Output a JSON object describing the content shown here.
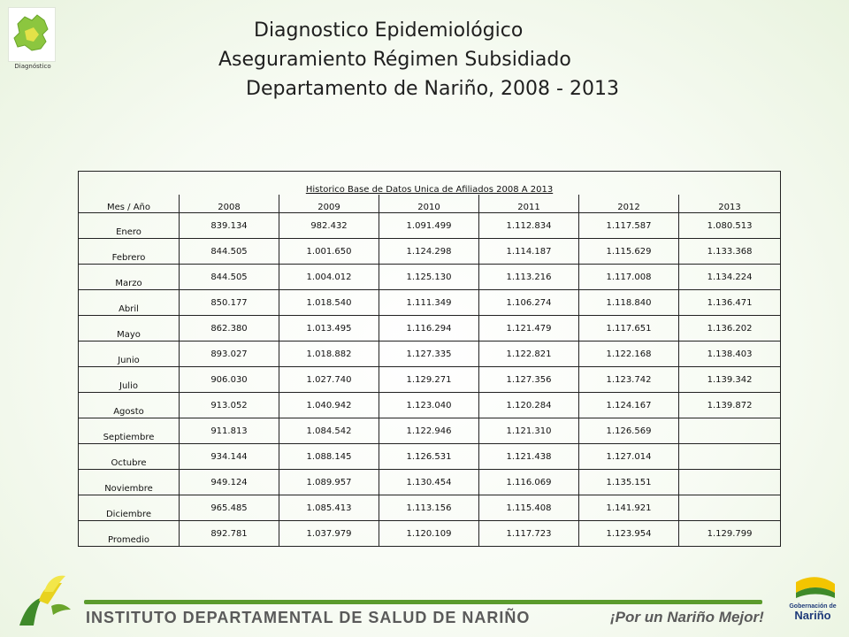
{
  "header": {
    "logo_caption": "Diagnóstico",
    "title_line1": "Diagnostico Epidemiológico",
    "title_line2": "Aseguramiento Régimen Subsidiado",
    "title_line3": "Departamento de Nariño,  2008 - 2013"
  },
  "table": {
    "caption": "Historico Base de Datos Unica de Afiliados 2008 A 2013",
    "headers": [
      "Mes / Año",
      "2008",
      "2009",
      "2010",
      "2011",
      "2012",
      "2013"
    ],
    "rows": [
      [
        "Enero",
        "839.134",
        "982.432",
        "1.091.499",
        "1.112.834",
        "1.117.587",
        "1.080.513"
      ],
      [
        "Febrero",
        "844.505",
        "1.001.650",
        "1.124.298",
        "1.114.187",
        "1.115.629",
        "1.133.368"
      ],
      [
        "Marzo",
        "844.505",
        "1.004.012",
        "1.125.130",
        "1.113.216",
        "1.117.008",
        "1.134.224"
      ],
      [
        "Abril",
        "850.177",
        "1.018.540",
        "1.111.349",
        "1.106.274",
        "1.118.840",
        "1.136.471"
      ],
      [
        "Mayo",
        "862.380",
        "1.013.495",
        "1.116.294",
        "1.121.479",
        "1.117.651",
        "1.136.202"
      ],
      [
        "Junio",
        "893.027",
        "1.018.882",
        "1.127.335",
        "1.122.821",
        "1.122.168",
        "1.138.403"
      ],
      [
        "Julio",
        "906.030",
        "1.027.740",
        "1.129.271",
        "1.127.356",
        "1.123.742",
        "1.139.342"
      ],
      [
        "Agosto",
        "913.052",
        "1.040.942",
        "1.123.040",
        "1.120.284",
        "1.124.167",
        "1.139.872"
      ],
      [
        "Septiembre",
        "911.813",
        "1.084.542",
        "1.122.946",
        "1.121.310",
        "1.126.569",
        ""
      ],
      [
        "Octubre",
        "934.144",
        "1.088.145",
        "1.126.531",
        "1.121.438",
        "1.127.014",
        ""
      ],
      [
        "Noviembre",
        "949.124",
        "1.089.957",
        "1.130.454",
        "1.116.069",
        "1.135.151",
        ""
      ],
      [
        "Diciembre",
        "965.485",
        "1.085.413",
        "1.113.156",
        "1.115.408",
        "1.141.921",
        ""
      ],
      [
        "Promedio",
        "892.781",
        "1.037.979",
        "1.120.109",
        "1.117.723",
        "1.123.954",
        "1.129.799"
      ]
    ]
  },
  "footer": {
    "institute": "INSTITUTO DEPARTAMENTAL DE SALUD DE NARIÑO",
    "slogan": "¡Por un Nariño Mejor!",
    "gob_small": "Gobernación de",
    "gob_big": "Nariño"
  },
  "colors": {
    "accent_green": "#5b9b2d",
    "map_green": "#8cc63f",
    "map_yellow": "#f2e64a",
    "gob_blue": "#1f3b7a",
    "gob_yellow": "#f3c500"
  }
}
